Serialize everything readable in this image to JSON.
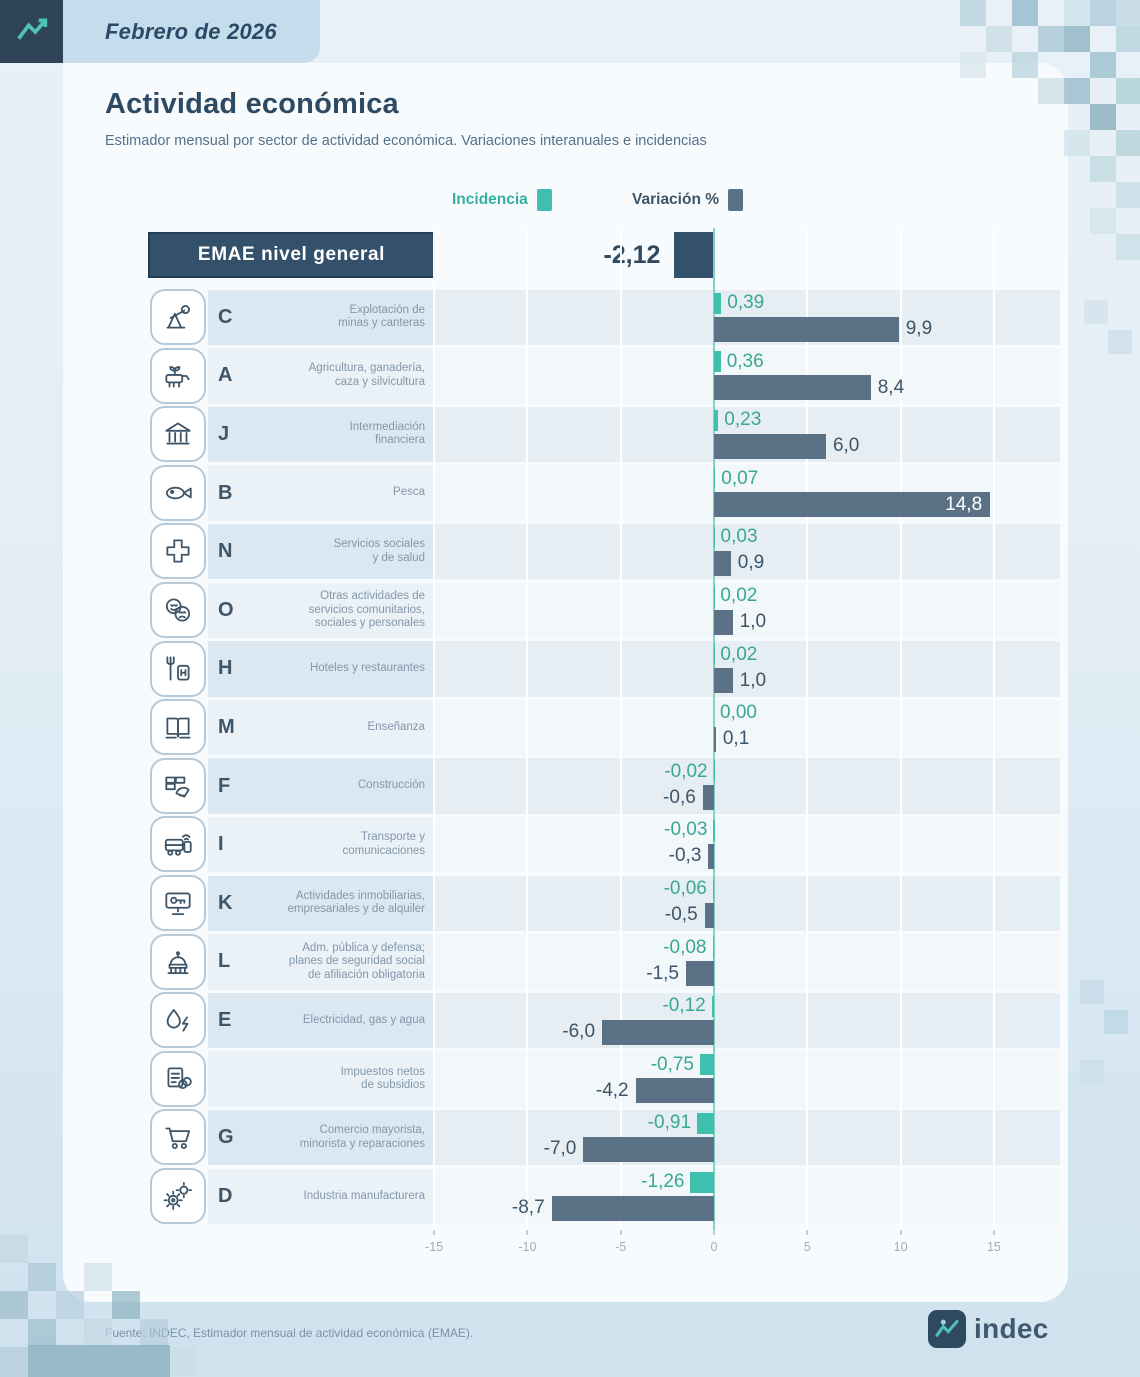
{
  "header": {
    "date_label": "Febrero de 2026"
  },
  "title": "Actividad económica",
  "subtitle": "Estimador mensual por sector de actividad económica. Variaciones interanuales e incidencias",
  "legend": {
    "incidencia": "Incidencia",
    "variacion": "Variación %"
  },
  "colors": {
    "incidencia": "#3fbfae",
    "variacion": "#5b7286",
    "emae_bar": "#33516b"
  },
  "chart_data": {
    "type": "bar",
    "orientation": "horizontal",
    "title": "Actividad económica",
    "x_ticks": [
      "-15",
      "-10",
      "-5",
      "0",
      "5",
      "10",
      "15"
    ],
    "xlim": [
      -15,
      15
    ],
    "legend_entries": [
      "Incidencia",
      "Variación %"
    ],
    "general": {
      "label": "EMAE nivel general",
      "variacion": -2.12,
      "variacion_label": "-2,12"
    },
    "rows": [
      {
        "code": "C",
        "sector": "Explotación de\nminas y canteras",
        "icon": "oil-pump-icon",
        "incidencia": 0.39,
        "incidencia_label": "0,39",
        "variacion": 9.9,
        "variacion_label": "9,9"
      },
      {
        "code": "A",
        "sector": "Agricultura, ganadería,\ncaza y silvicultura",
        "icon": "livestock-icon",
        "incidencia": 0.36,
        "incidencia_label": "0,36",
        "variacion": 8.4,
        "variacion_label": "8,4"
      },
      {
        "code": "J",
        "sector": "Intermediación\nfinanciera",
        "icon": "bank-icon",
        "incidencia": 0.23,
        "incidencia_label": "0,23",
        "variacion": 6.0,
        "variacion_label": "6,0"
      },
      {
        "code": "B",
        "sector": "Pesca",
        "icon": "fish-icon",
        "incidencia": 0.07,
        "incidencia_label": "0,07",
        "variacion": 14.8,
        "variacion_label": "14,8",
        "variacion_inside": true
      },
      {
        "code": "N",
        "sector": "Servicios sociales\ny de salud",
        "icon": "health-cross-icon",
        "incidencia": 0.03,
        "incidencia_label": "0,03",
        "variacion": 0.9,
        "variacion_label": "0,9"
      },
      {
        "code": "O",
        "sector": "Otras actividades de\nservicios comunitarios,\nsociales y personales",
        "icon": "masks-icon",
        "incidencia": 0.02,
        "incidencia_label": "0,02",
        "variacion": 1.0,
        "variacion_label": "1,0"
      },
      {
        "code": "H",
        "sector": "Hoteles y restaurantes",
        "icon": "restaurant-icon",
        "incidencia": 0.02,
        "incidencia_label": "0,02",
        "variacion": 1.0,
        "variacion_label": "1,0"
      },
      {
        "code": "M",
        "sector": "Enseñanza",
        "icon": "book-icon",
        "incidencia": 0.0,
        "incidencia_label": "0,00",
        "variacion": 0.1,
        "variacion_label": "0,1"
      },
      {
        "code": "F",
        "sector": "Construcción",
        "icon": "construction-icon",
        "incidencia": -0.02,
        "incidencia_label": "-0,02",
        "variacion": -0.6,
        "variacion_label": "-0,6"
      },
      {
        "code": "I",
        "sector": "Transporte y\ncomunicaciones",
        "icon": "transport-icon",
        "incidencia": -0.03,
        "incidencia_label": "-0,03",
        "variacion": -0.3,
        "variacion_label": "-0,3"
      },
      {
        "code": "K",
        "sector": "Actividades inmobiliarias,\nempresariales y de alquiler",
        "icon": "monitor-key-icon",
        "incidencia": -0.06,
        "incidencia_label": "-0,06",
        "variacion": -0.5,
        "variacion_label": "-0,5"
      },
      {
        "code": "L",
        "sector": "Adm. pública y defensa;\nplanes de seguridad social\nde afiliación obligatoria",
        "icon": "government-icon",
        "incidencia": -0.08,
        "incidencia_label": "-0,08",
        "variacion": -1.5,
        "variacion_label": "-1,5"
      },
      {
        "code": "E",
        "sector": "Electricidad, gas y agua",
        "icon": "utilities-icon",
        "incidencia": -0.12,
        "incidencia_label": "-0,12",
        "variacion": -6.0,
        "variacion_label": "-6,0"
      },
      {
        "code": "",
        "sector": "Impuestos netos\nde subsidios",
        "icon": "taxes-icon",
        "incidencia": -0.75,
        "incidencia_label": "-0,75",
        "variacion": -4.2,
        "variacion_label": "-4,2"
      },
      {
        "code": "G",
        "sector": "Comercio mayorista,\nminorista y reparaciones",
        "icon": "cart-icon",
        "incidencia": -0.91,
        "incidencia_label": "-0,91",
        "variacion": -7.0,
        "variacion_label": "-7,0"
      },
      {
        "code": "D",
        "sector": "Industria manufacturera",
        "icon": "gears-icon",
        "incidencia": -1.26,
        "incidencia_label": "-1,26",
        "variacion": -8.7,
        "variacion_label": "-8,7"
      }
    ]
  },
  "footer": {
    "source": "Fuente: INDEC, Estimador mensual de actividad económica (EMAE)."
  },
  "logo": {
    "text": "indec"
  }
}
